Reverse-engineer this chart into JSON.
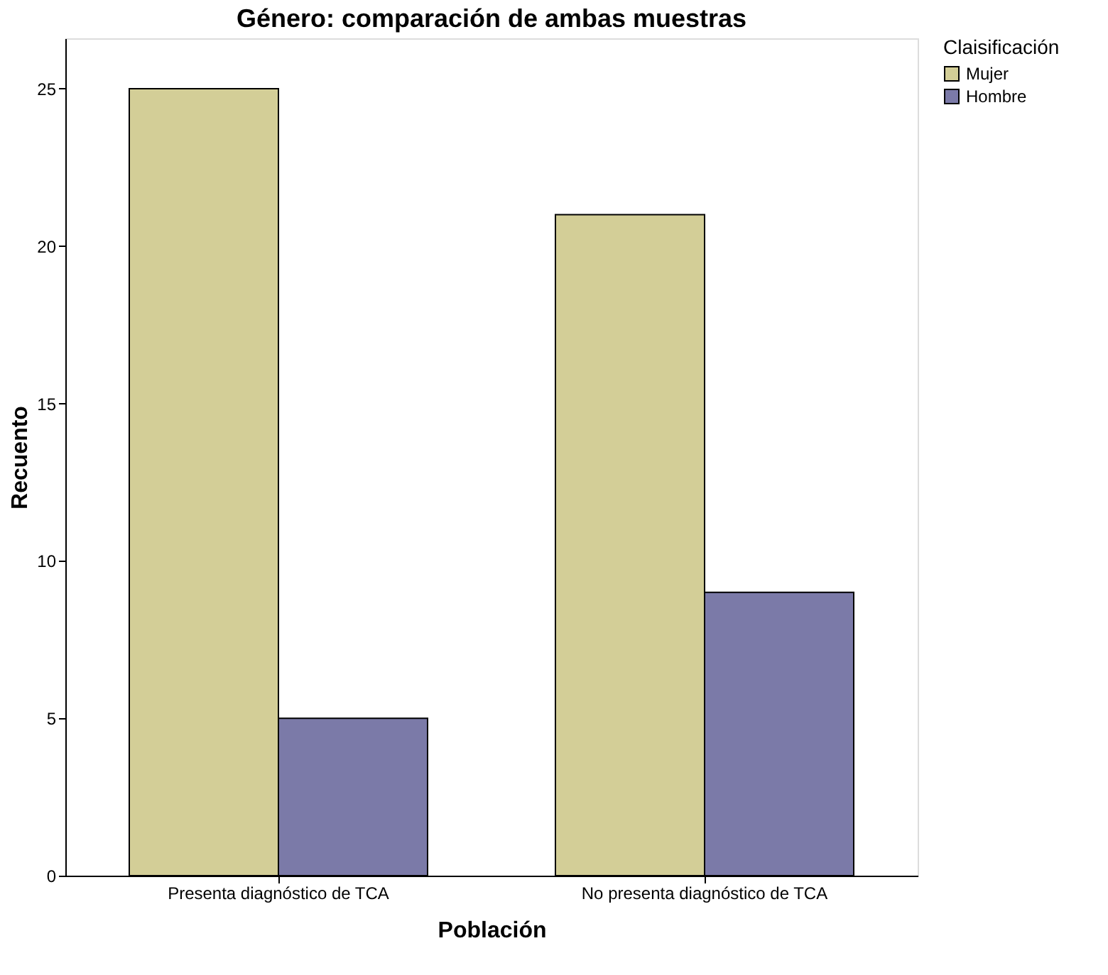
{
  "chart_data": {
    "type": "bar",
    "title": "Género: comparación de ambas muestras",
    "xlabel": "Población",
    "ylabel": "Recuento",
    "legend_title": "Claisificación",
    "categories": [
      "Presenta diagnóstico de TCA",
      "No presenta diagnóstico de TCA"
    ],
    "series": [
      {
        "name": "Mujer",
        "color": "#d3ce97",
        "values": [
          25,
          21
        ]
      },
      {
        "name": "Hombre",
        "color": "#7b7aa8",
        "values": [
          5,
          9
        ]
      }
    ],
    "ylim": [
      0,
      26.6
    ],
    "yticks": [
      0,
      5,
      10,
      15,
      20,
      25
    ],
    "grid": false,
    "legend": "top right"
  }
}
